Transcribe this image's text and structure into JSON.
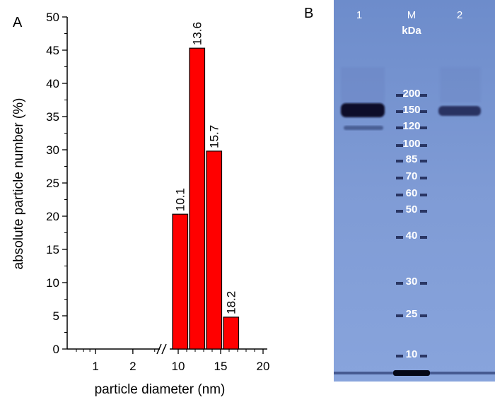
{
  "panel_labels": {
    "a": "A",
    "b": "B"
  },
  "colors": {
    "bar": "#ff0000",
    "gel_bg": "#7d9ad4",
    "band": "#0a0f2a"
  },
  "chart_data": {
    "type": "bar",
    "title": "",
    "xlabel": "particle diameter (nm)",
    "ylabel": "absolute particle number (%)",
    "ylim": [
      0,
      50
    ],
    "yticks": [
      "0",
      "5",
      "10",
      "15",
      "20",
      "25",
      "30",
      "35",
      "40",
      "45",
      "50"
    ],
    "x_axis_broken": true,
    "x_scale_left": {
      "type": "log",
      "ticks": [
        "1",
        "2"
      ]
    },
    "x_scale_right": {
      "type": "linear",
      "ticks": [
        "10",
        "15",
        "20"
      ]
    },
    "categories": [
      "10.1",
      "13.6",
      "15.7",
      "18.2"
    ],
    "values": [
      20.3,
      45.3,
      29.8,
      4.8
    ],
    "bar_labels": [
      "10.1",
      "13.6",
      "15.7",
      "18.2"
    ],
    "grid": false
  },
  "gel": {
    "lane_labels": [
      "1",
      "M",
      "2"
    ],
    "unit": "kDa",
    "markers": [
      "200",
      "150",
      "120",
      "100",
      "85",
      "70",
      "60",
      "50",
      "40",
      "30",
      "25",
      "10"
    ]
  }
}
